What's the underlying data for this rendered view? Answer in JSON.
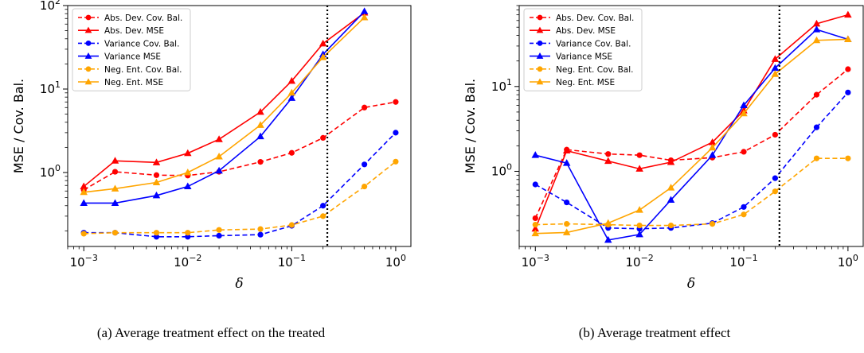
{
  "chart_data": [
    {
      "type": "line",
      "caption": "(a) Average treatment effect on the treated",
      "xlabel": "δ",
      "ylabel": "MSE / Cov. Bal.",
      "xscale": "log",
      "yscale": "log",
      "xlim": [
        0.0007,
        1.4
      ],
      "ylim": [
        0.13,
        100
      ],
      "xticks": [
        {
          "value": 0.001,
          "base": "10",
          "exp": "−3"
        },
        {
          "value": 0.01,
          "base": "10",
          "exp": "−2"
        },
        {
          "value": 0.1,
          "base": "10",
          "exp": "−1"
        },
        {
          "value": 1,
          "base": "10",
          "exp": "0"
        }
      ],
      "yticks": [
        {
          "value": 1,
          "base": "10",
          "exp": "0"
        },
        {
          "value": 10,
          "base": "10",
          "exp": "1"
        },
        {
          "value": 100,
          "base": "10",
          "exp": "2"
        }
      ],
      "vline": 0.22,
      "legend_position": "top-left",
      "x": [
        0.001,
        0.002,
        0.005,
        0.01,
        0.02,
        0.05,
        0.1,
        0.2,
        0.5,
        1.0
      ],
      "series": [
        {
          "name": "Abs. Dev. Cov. Bal.",
          "color": "#ff0000",
          "style": "dashed",
          "marker": "circle",
          "values": [
            0.62,
            1.02,
            0.93,
            0.92,
            1.02,
            1.34,
            1.72,
            2.6,
            6.0,
            7.0
          ]
        },
        {
          "name": "Abs. Dev. MSE",
          "color": "#ff0000",
          "style": "solid",
          "marker": "triangle",
          "values": [
            0.68,
            1.38,
            1.32,
            1.7,
            2.5,
            5.3,
            12.5,
            35,
            82,
            null
          ]
        },
        {
          "name": "Variance Cov. Bal.",
          "color": "#0000ff",
          "style": "dashed",
          "marker": "circle",
          "values": [
            0.19,
            0.19,
            0.17,
            0.17,
            0.175,
            0.18,
            0.23,
            0.4,
            1.25,
            3.0
          ]
        },
        {
          "name": "Variance MSE",
          "color": "#0000ff",
          "style": "solid",
          "marker": "triangle",
          "values": [
            0.43,
            0.43,
            0.53,
            0.68,
            1.05,
            2.7,
            7.8,
            26,
            85,
            null
          ]
        },
        {
          "name": "Neg. Ent. Cov. Bal.",
          "color": "#ffa500",
          "style": "dashed",
          "marker": "circle",
          "values": [
            0.185,
            0.19,
            0.19,
            0.19,
            0.205,
            0.21,
            0.235,
            0.3,
            0.68,
            1.35
          ]
        },
        {
          "name": "Neg. Ent. MSE",
          "color": "#ffa500",
          "style": "solid",
          "marker": "triangle",
          "values": [
            0.58,
            0.64,
            0.76,
            1.0,
            1.55,
            3.7,
            9.0,
            24,
            72,
            null
          ]
        }
      ]
    },
    {
      "type": "line",
      "caption": "(b) Average treatment effect",
      "xlabel": "δ",
      "ylabel": "MSE / Cov. Bal.",
      "xscale": "log",
      "yscale": "log",
      "xlim": [
        0.0007,
        1.4
      ],
      "ylim": [
        0.13,
        90
      ],
      "xticks": [
        {
          "value": 0.001,
          "base": "10",
          "exp": "−3"
        },
        {
          "value": 0.01,
          "base": "10",
          "exp": "−2"
        },
        {
          "value": 0.1,
          "base": "10",
          "exp": "−1"
        },
        {
          "value": 1,
          "base": "10",
          "exp": "0"
        }
      ],
      "yticks": [
        {
          "value": 1,
          "base": "10",
          "exp": "0"
        },
        {
          "value": 10,
          "base": "10",
          "exp": "1"
        }
      ],
      "vline": 0.22,
      "legend_position": "top-left",
      "x": [
        0.001,
        0.002,
        0.005,
        0.01,
        0.02,
        0.05,
        0.1,
        0.2,
        0.5,
        1.0
      ],
      "series": [
        {
          "name": "Abs. Dev. Cov. Bal.",
          "color": "#ff0000",
          "style": "dashed",
          "marker": "circle",
          "values": [
            0.28,
            1.8,
            1.6,
            1.55,
            1.35,
            1.45,
            1.7,
            2.7,
            8.0,
            16.0
          ]
        },
        {
          "name": "Abs. Dev. MSE",
          "color": "#ff0000",
          "style": "solid",
          "marker": "triangle",
          "values": [
            0.21,
            1.75,
            1.32,
            1.07,
            1.28,
            2.2,
            5.2,
            21,
            55,
            70
          ]
        },
        {
          "name": "Variance Cov. Bal.",
          "color": "#0000ff",
          "style": "dashed",
          "marker": "circle",
          "values": [
            0.7,
            0.43,
            0.215,
            0.21,
            0.215,
            0.245,
            0.38,
            0.83,
            3.3,
            8.5
          ]
        },
        {
          "name": "Variance MSE",
          "color": "#0000ff",
          "style": "solid",
          "marker": "triangle",
          "values": [
            1.55,
            1.25,
            0.155,
            0.18,
            0.46,
            1.55,
            6.0,
            16.5,
            47,
            36
          ]
        },
        {
          "name": "Neg. Ent. Cov. Bal.",
          "color": "#ffa500",
          "style": "dashed",
          "marker": "circle",
          "values": [
            0.235,
            0.24,
            0.235,
            0.23,
            0.23,
            0.24,
            0.31,
            0.58,
            1.42,
            1.42
          ]
        },
        {
          "name": "Neg. Ent. MSE",
          "color": "#ffa500",
          "style": "solid",
          "marker": "triangle",
          "values": [
            0.185,
            0.19,
            0.245,
            0.35,
            0.64,
            1.9,
            4.8,
            14,
            35,
            36
          ]
        }
      ]
    }
  ]
}
